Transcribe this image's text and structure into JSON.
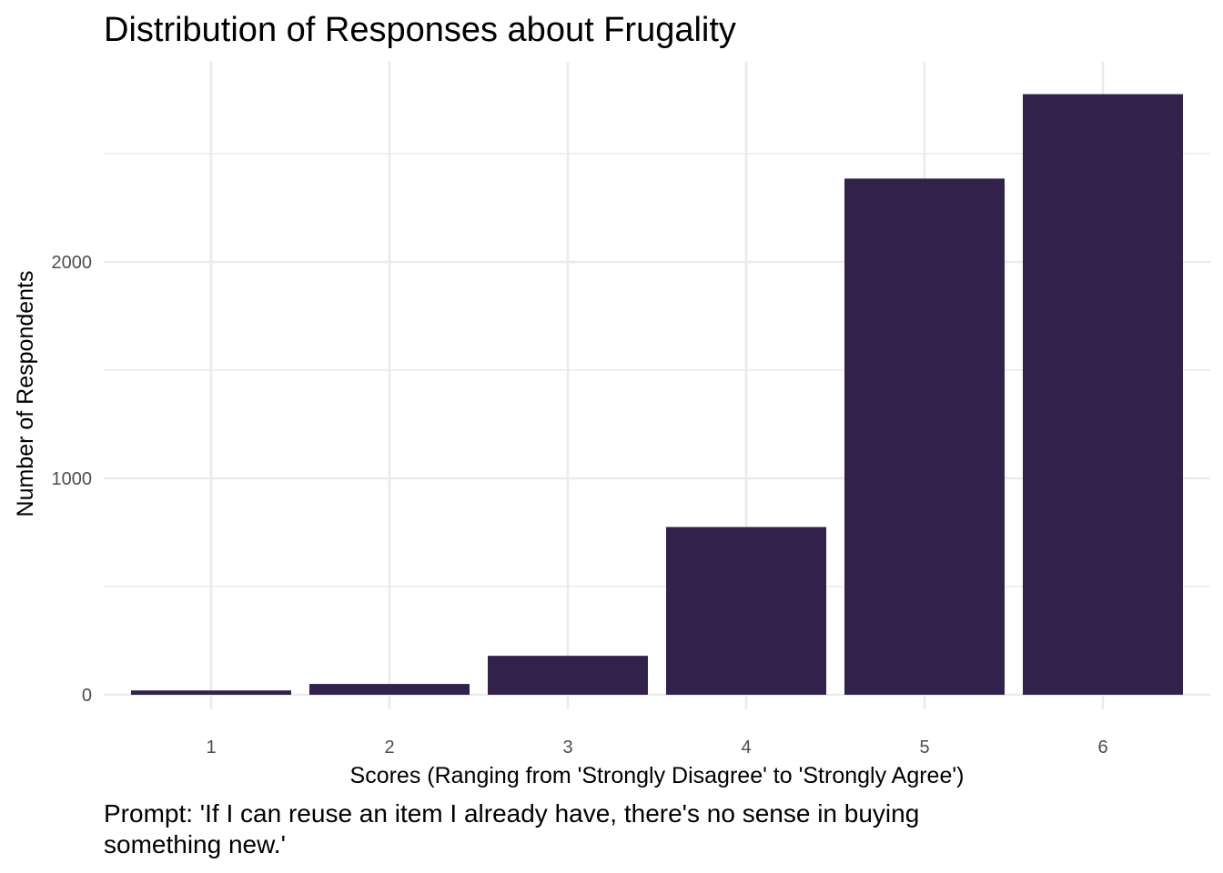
{
  "chart_data": {
    "type": "bar",
    "title": "Distribution of Responses about Frugality",
    "xlabel": "Scores (Ranging from 'Strongly Disagree' to 'Strongly Agree')",
    "ylabel": "Number of Respondents",
    "caption_lines": [
      "Prompt: 'If I can reuse an item I already have, there's no sense in buying",
      "something new.'"
    ],
    "categories": [
      "1",
      "2",
      "3",
      "4",
      "5",
      "6"
    ],
    "values": [
      20,
      50,
      180,
      775,
      2385,
      2775
    ],
    "y_ticks": [
      "0",
      "1000",
      "2000"
    ],
    "y_tick_values": [
      0,
      1000,
      2000
    ],
    "y_minor_tick_values": [
      500,
      1500,
      2500
    ],
    "ylim": [
      0,
      2920
    ],
    "grid": true,
    "bar_color": "#32214b"
  }
}
